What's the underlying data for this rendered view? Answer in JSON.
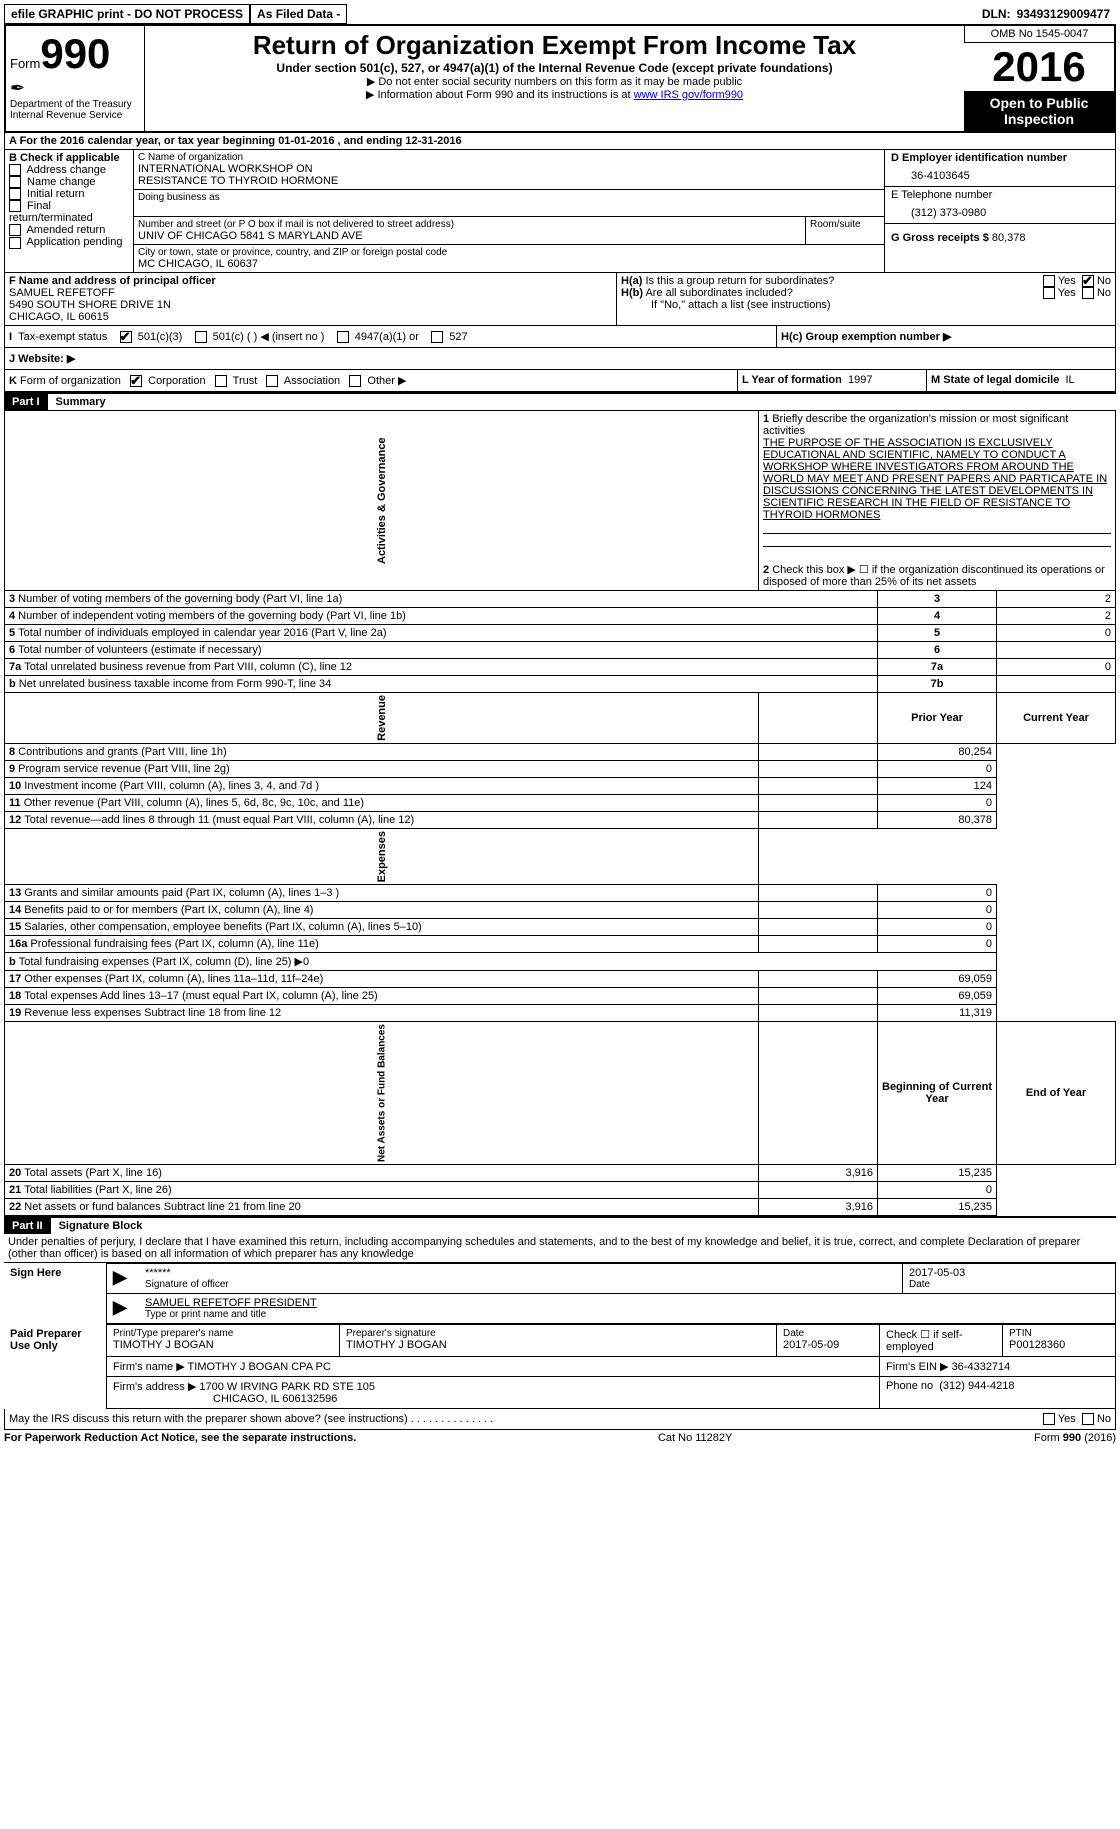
{
  "topbar": {
    "efile": "efile GRAPHIC print - DO NOT PROCESS",
    "asfiled": "As Filed Data -",
    "dln_label": "DLN:",
    "dln": "93493129009477"
  },
  "header": {
    "form_label": "Form",
    "form_num": "990",
    "dept1": "Department of the Treasury",
    "dept2": "Internal Revenue Service",
    "title": "Return of Organization Exempt From Income Tax",
    "subtitle": "Under section 501(c), 527, or 4947(a)(1) of the Internal Revenue Code (except private foundations)",
    "note1": "▶ Do not enter social security numbers on this form as it may be made public",
    "note2_pre": "▶ Information about Form 990 and its instructions is at ",
    "note2_link": "www IRS gov/form990",
    "omb": "OMB No 1545-0047",
    "year": "2016",
    "open": "Open to Public Inspection"
  },
  "sectionA": {
    "line": "A  For the 2016 calendar year, or tax year beginning 01-01-2016  , and ending 12-31-2016",
    "B": {
      "title": "B Check if applicable",
      "items": [
        "Address change",
        "Name change",
        "Initial return",
        "Final return/terminated",
        "Amended return",
        "Application pending"
      ]
    },
    "C": {
      "label": "C Name of organization",
      "name1": "INTERNATIONAL WORKSHOP ON",
      "name2": "RESISTANCE TO THYROID HORMONE",
      "dba_label": "Doing business as",
      "addr_label": "Number and street (or P O  box if mail is not delivered to street address)",
      "addr": "UNIV OF CHICAGO 5841 S MARYLAND AVE",
      "room_label": "Room/suite",
      "city_label": "City or town, state or province, country, and ZIP or foreign postal code",
      "city": "MC CHICAGO, IL  60637"
    },
    "D": {
      "label": "D Employer identification number",
      "val": "36-4103645"
    },
    "E": {
      "label": "E Telephone number",
      "val": "(312) 373-0980"
    },
    "G": {
      "label": "G Gross receipts $",
      "val": "80,378"
    },
    "F": {
      "label": "F  Name and address of principal officer",
      "name": "SAMUEL REFETOFF",
      "addr1": "5490 SOUTH SHORE DRIVE 1N",
      "addr2": "CHICAGO, IL  60615"
    },
    "H": {
      "a": "H(a) Is this a group return for subordinates?",
      "b": "H(b) Are all subordinates included?",
      "ifno": "If \"No,\" attach a list  (see instructions)",
      "c": "H(c) Group exemption number ▶",
      "yes": "Yes",
      "no": "No"
    },
    "I": {
      "label": "I  Tax-exempt status",
      "o1": "501(c)(3)",
      "o2": "501(c) (   ) ◀ (insert no )",
      "o3": "4947(a)(1) or",
      "o4": "527"
    },
    "J": "J  Website: ▶",
    "K": {
      "label": "K Form of organization",
      "o1": "Corporation",
      "o2": "Trust",
      "o3": "Association",
      "o4": "Other ▶"
    },
    "L": {
      "label": "L Year of formation",
      "val": "1997"
    },
    "M": {
      "label": "M State of legal domicile",
      "val": "IL"
    }
  },
  "partI": {
    "head": "Part I",
    "title": "Summary",
    "sections": {
      "gov": "Activities & Governance",
      "rev": "Revenue",
      "exp": "Expenses",
      "net": "Net Assets or Fund Balances"
    },
    "line1": {
      "num": "1",
      "label": "Briefly describe the organization's mission or most significant activities",
      "text": "THE PURPOSE OF THE ASSOCIATION IS EXCLUSIVELY EDUCATIONAL AND SCIENTIFIC, NAMELY TO CONDUCT A WORKSHOP WHERE INVESTIGATORS FROM AROUND THE WORLD MAY MEET AND PRESENT PAPERS AND PARTICAPATE IN DISCUSSIONS CONCERNING THE LATEST DEVELOPMENTS IN SCIENTIFIC RESEARCH IN THE FIELD OF RESISTANCE TO THYROID HORMONES"
    },
    "line2": "Check this box ▶ ☐ if the organization discontinued its operations or disposed of more than 25% of its net assets",
    "gov_rows": [
      {
        "n": "3",
        "d": "Number of voting members of the governing body (Part VI, line 1a)",
        "b": "3",
        "v": "2"
      },
      {
        "n": "4",
        "d": "Number of independent voting members of the governing body (Part VI, line 1b)",
        "b": "4",
        "v": "2"
      },
      {
        "n": "5",
        "d": "Total number of individuals employed in calendar year 2016 (Part V, line 2a)",
        "b": "5",
        "v": "0"
      },
      {
        "n": "6",
        "d": "Total number of volunteers (estimate if necessary)",
        "b": "6",
        "v": ""
      },
      {
        "n": "7a",
        "d": "Total unrelated business revenue from Part VIII, column (C), line 12",
        "b": "7a",
        "v": "0"
      },
      {
        "n": "b",
        "d": "Net unrelated business taxable income from Form 990-T, line 34",
        "b": "7b",
        "v": ""
      }
    ],
    "col_prior": "Prior Year",
    "col_curr": "Current Year",
    "rev_rows": [
      {
        "n": "8",
        "d": "Contributions and grants (Part VIII, line 1h)",
        "p": "",
        "c": "80,254"
      },
      {
        "n": "9",
        "d": "Program service revenue (Part VIII, line 2g)",
        "p": "",
        "c": "0"
      },
      {
        "n": "10",
        "d": "Investment income (Part VIII, column (A), lines 3, 4, and 7d )",
        "p": "",
        "c": "124"
      },
      {
        "n": "11",
        "d": "Other revenue (Part VIII, column (A), lines 5, 6d, 8c, 9c, 10c, and 11e)",
        "p": "",
        "c": "0"
      },
      {
        "n": "12",
        "d": "Total revenue—add lines 8 through 11 (must equal Part VIII, column (A), line 12)",
        "p": "",
        "c": "80,378"
      }
    ],
    "exp_rows": [
      {
        "n": "13",
        "d": "Grants and similar amounts paid (Part IX, column (A), lines 1–3 )",
        "p": "",
        "c": "0"
      },
      {
        "n": "14",
        "d": "Benefits paid to or for members (Part IX, column (A), line 4)",
        "p": "",
        "c": "0"
      },
      {
        "n": "15",
        "d": "Salaries, other compensation, employee benefits (Part IX, column (A), lines 5–10)",
        "p": "",
        "c": "0"
      },
      {
        "n": "16a",
        "d": "Professional fundraising fees (Part IX, column (A), line 11e)",
        "p": "",
        "c": "0"
      },
      {
        "n": "b",
        "d": "Total fundraising expenses (Part IX, column (D), line 25) ▶0",
        "p": null,
        "c": null
      },
      {
        "n": "17",
        "d": "Other expenses (Part IX, column (A), lines 11a–11d, 11f–24e)",
        "p": "",
        "c": "69,059"
      },
      {
        "n": "18",
        "d": "Total expenses  Add lines 13–17 (must equal Part IX, column (A), line 25)",
        "p": "",
        "c": "69,059"
      },
      {
        "n": "19",
        "d": "Revenue less expenses  Subtract line 18 from line 12",
        "p": "",
        "c": "11,319"
      }
    ],
    "col_beg": "Beginning of Current Year",
    "col_end": "End of Year",
    "net_rows": [
      {
        "n": "20",
        "d": "Total assets (Part X, line 16)",
        "p": "3,916",
        "c": "15,235"
      },
      {
        "n": "21",
        "d": "Total liabilities (Part X, line 26)",
        "p": "",
        "c": "0"
      },
      {
        "n": "22",
        "d": "Net assets or fund balances  Subtract line 21 from line 20",
        "p": "3,916",
        "c": "15,235"
      }
    ]
  },
  "partII": {
    "head": "Part II",
    "title": "Signature Block",
    "perjury": "Under penalties of perjury, I declare that I have examined this return, including accompanying schedules and statements, and to the best of my knowledge and belief, it is true, correct, and complete  Declaration of preparer (other than officer) is based on all information of which preparer has any knowledge",
    "sign_here": "Sign Here",
    "sig_stars": "******",
    "sig_label": "Signature of officer",
    "date_label": "Date",
    "sig_date": "2017-05-03",
    "name_title": "SAMUEL REFETOFF PRESIDENT",
    "name_label": "Type or print name and title",
    "paid": "Paid Preparer Use Only",
    "prep_name_label": "Print/Type preparer's name",
    "prep_name": "TIMOTHY J BOGAN",
    "prep_sig_label": "Preparer's signature",
    "prep_sig": "TIMOTHY J BOGAN",
    "prep_date": "2017-05-09",
    "self_emp": "Check ☐ if self-employed",
    "ptin_label": "PTIN",
    "ptin": "P00128360",
    "firm_name_label": "Firm's name    ▶",
    "firm_name": "TIMOTHY J BOGAN CPA PC",
    "firm_ein_label": "Firm's EIN ▶",
    "firm_ein": "36-4332714",
    "firm_addr_label": "Firm's address ▶",
    "firm_addr1": "1700 W IRVING PARK RD STE 105",
    "firm_addr2": "CHICAGO, IL  606132596",
    "firm_phone_label": "Phone no",
    "firm_phone": "(312) 944-4218",
    "discuss": "May the IRS discuss this return with the preparer shown above? (see instructions)",
    "yes": "Yes",
    "no": "No"
  },
  "footer": {
    "left": "For Paperwork Reduction Act Notice, see the separate instructions.",
    "mid": "Cat  No  11282Y",
    "right": "Form 990 (2016)"
  }
}
